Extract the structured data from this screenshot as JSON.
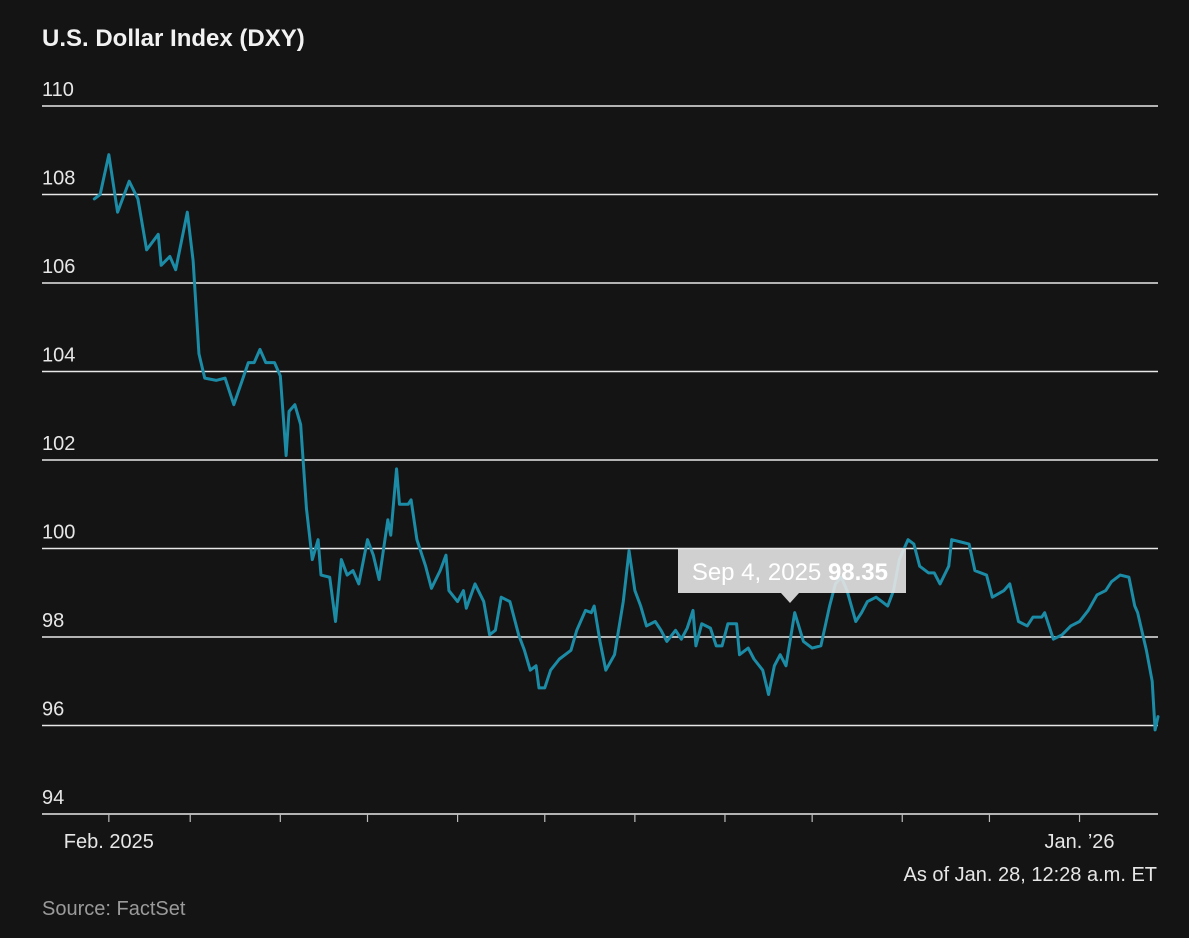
{
  "chart_data": {
    "type": "line",
    "title": "U.S. Dollar Index (DXY)",
    "note": "As of Jan. 28, 12:28 a.m. ET",
    "source": "Source: FactSet",
    "color": "#1b8ba6",
    "grid": true,
    "tooltip": {
      "label": "Sep 4, 2025",
      "value": 98.35
    },
    "ylim": [
      94,
      110
    ],
    "yticks": [
      94,
      96,
      98,
      100,
      102,
      104,
      106,
      108,
      110
    ],
    "xlim": [
      "2025-01-09",
      "2026-01-28"
    ],
    "xticks": [
      {
        "value": "2025-02-01",
        "label": "Feb. 2025"
      },
      {
        "value": "2026-01-01",
        "label": "Jan. ’26"
      }
    ],
    "minor_xticks": [
      "2025-03-01",
      "2025-04-01",
      "2025-05-01",
      "2025-06-01",
      "2025-07-01",
      "2025-08-01",
      "2025-09-01",
      "2025-10-01",
      "2025-11-01",
      "2025-12-01"
    ],
    "x": [
      "2025-01-27",
      "2025-01-29",
      "2025-02-01",
      "2025-02-04",
      "2025-02-08",
      "2025-02-11",
      "2025-02-14",
      "2025-02-18",
      "2025-02-19",
      "2025-02-22",
      "2025-02-24",
      "2025-02-28",
      "2025-03-02",
      "2025-03-04",
      "2025-03-06",
      "2025-03-10",
      "2025-03-13",
      "2025-03-16",
      "2025-03-21",
      "2025-03-23",
      "2025-03-25",
      "2025-03-27",
      "2025-03-30",
      "2025-04-01",
      "2025-04-03",
      "2025-04-04",
      "2025-04-06",
      "2025-04-08",
      "2025-04-10",
      "2025-04-12",
      "2025-04-14",
      "2025-04-15",
      "2025-04-18",
      "2025-04-20",
      "2025-04-22",
      "2025-04-24",
      "2025-04-26",
      "2025-04-28",
      "2025-05-01",
      "2025-05-03",
      "2025-05-05",
      "2025-05-08",
      "2025-05-09",
      "2025-05-11",
      "2025-05-12",
      "2025-05-15",
      "2025-05-16",
      "2025-05-18",
      "2025-05-21",
      "2025-05-23",
      "2025-05-26",
      "2025-05-28",
      "2025-05-29",
      "2025-06-01",
      "2025-06-03",
      "2025-06-04",
      "2025-06-07",
      "2025-06-10",
      "2025-06-12",
      "2025-06-14",
      "2025-06-16",
      "2025-06-19",
      "2025-06-22",
      "2025-06-24",
      "2025-06-26",
      "2025-06-28",
      "2025-06-29",
      "2025-07-01",
      "2025-07-03",
      "2025-07-06",
      "2025-07-10",
      "2025-07-12",
      "2025-07-15",
      "2025-07-17",
      "2025-07-18",
      "2025-07-20",
      "2025-07-22",
      "2025-07-25",
      "2025-07-28",
      "2025-07-30",
      "2025-08-01",
      "2025-08-03",
      "2025-08-05",
      "2025-08-08",
      "2025-08-10",
      "2025-08-12",
      "2025-08-15",
      "2025-08-17",
      "2025-08-19",
      "2025-08-21",
      "2025-08-22",
      "2025-08-24",
      "2025-08-27",
      "2025-08-29",
      "2025-08-31",
      "2025-09-02",
      "2025-09-05",
      "2025-09-06",
      "2025-09-09",
      "2025-09-11",
      "2025-09-14",
      "2025-09-16",
      "2025-09-18",
      "2025-09-20",
      "2025-09-22",
      "2025-09-25",
      "2025-09-28",
      "2025-10-01",
      "2025-10-04",
      "2025-10-07",
      "2025-10-09",
      "2025-10-11",
      "2025-10-13",
      "2025-10-16",
      "2025-10-18",
      "2025-10-20",
      "2025-10-23",
      "2025-10-25",
      "2025-10-27",
      "2025-10-29",
      "2025-10-31",
      "2025-11-03",
      "2025-11-05",
      "2025-11-07",
      "2025-11-10",
      "2025-11-12",
      "2025-11-14",
      "2025-11-17",
      "2025-11-18",
      "2025-11-21",
      "2025-11-24",
      "2025-11-26",
      "2025-11-30",
      "2025-12-02",
      "2025-12-06",
      "2025-12-08",
      "2025-12-11",
      "2025-12-14",
      "2025-12-16",
      "2025-12-19",
      "2025-12-20",
      "2025-12-23",
      "2025-12-26",
      "2025-12-29",
      "2026-01-01",
      "2026-01-04",
      "2026-01-07",
      "2026-01-10",
      "2026-01-12",
      "2026-01-15",
      "2026-01-18",
      "2026-01-20",
      "2026-01-21",
      "2026-01-24",
      "2026-01-26",
      "2026-01-27",
      "2026-01-28"
    ],
    "values": [
      107.9,
      108.0,
      108.9,
      107.6,
      108.3,
      107.9,
      106.75,
      107.1,
      106.4,
      106.6,
      106.3,
      107.6,
      106.5,
      104.4,
      103.85,
      103.8,
      103.85,
      103.25,
      104.2,
      104.2,
      104.5,
      104.2,
      104.2,
      103.9,
      102.1,
      103.1,
      103.25,
      102.8,
      100.9,
      99.75,
      100.2,
      99.4,
      99.35,
      98.35,
      99.75,
      99.4,
      99.5,
      99.2,
      100.2,
      99.85,
      99.3,
      100.65,
      100.3,
      101.8,
      101.0,
      101.0,
      101.1,
      100.2,
      99.6,
      99.1,
      99.5,
      99.85,
      99.05,
      98.8,
      99.05,
      98.65,
      99.2,
      98.8,
      98.05,
      98.15,
      98.9,
      98.8,
      98.05,
      97.7,
      97.25,
      97.35,
      96.85,
      96.85,
      97.25,
      97.5,
      97.7,
      98.15,
      98.6,
      98.55,
      98.7,
      97.9,
      97.25,
      97.6,
      98.8,
      99.95,
      99.05,
      98.7,
      98.25,
      98.35,
      98.15,
      97.9,
      98.15,
      97.95,
      98.2,
      98.6,
      97.8,
      98.3,
      98.2,
      97.8,
      97.8,
      98.3,
      98.3,
      97.6,
      97.75,
      97.5,
      97.25,
      96.7,
      97.35,
      97.6,
      97.35,
      98.55,
      97.9,
      97.75,
      97.8,
      98.7,
      99.2,
      99.35,
      99.05,
      98.35,
      98.55,
      98.8,
      98.9,
      98.8,
      98.7,
      99.05,
      99.75,
      100.2,
      100.1,
      99.6,
      99.45,
      99.45,
      99.2,
      99.6,
      100.2,
      100.15,
      100.1,
      99.5,
      99.4,
      98.9,
      99.05,
      99.2,
      98.35,
      98.25,
      98.45,
      98.45,
      98.55,
      97.95,
      98.05,
      98.25,
      98.35,
      98.6,
      98.95,
      99.05,
      99.25,
      99.4,
      99.35,
      98.7,
      98.55,
      97.7,
      97.0,
      95.9,
      96.2
    ]
  }
}
